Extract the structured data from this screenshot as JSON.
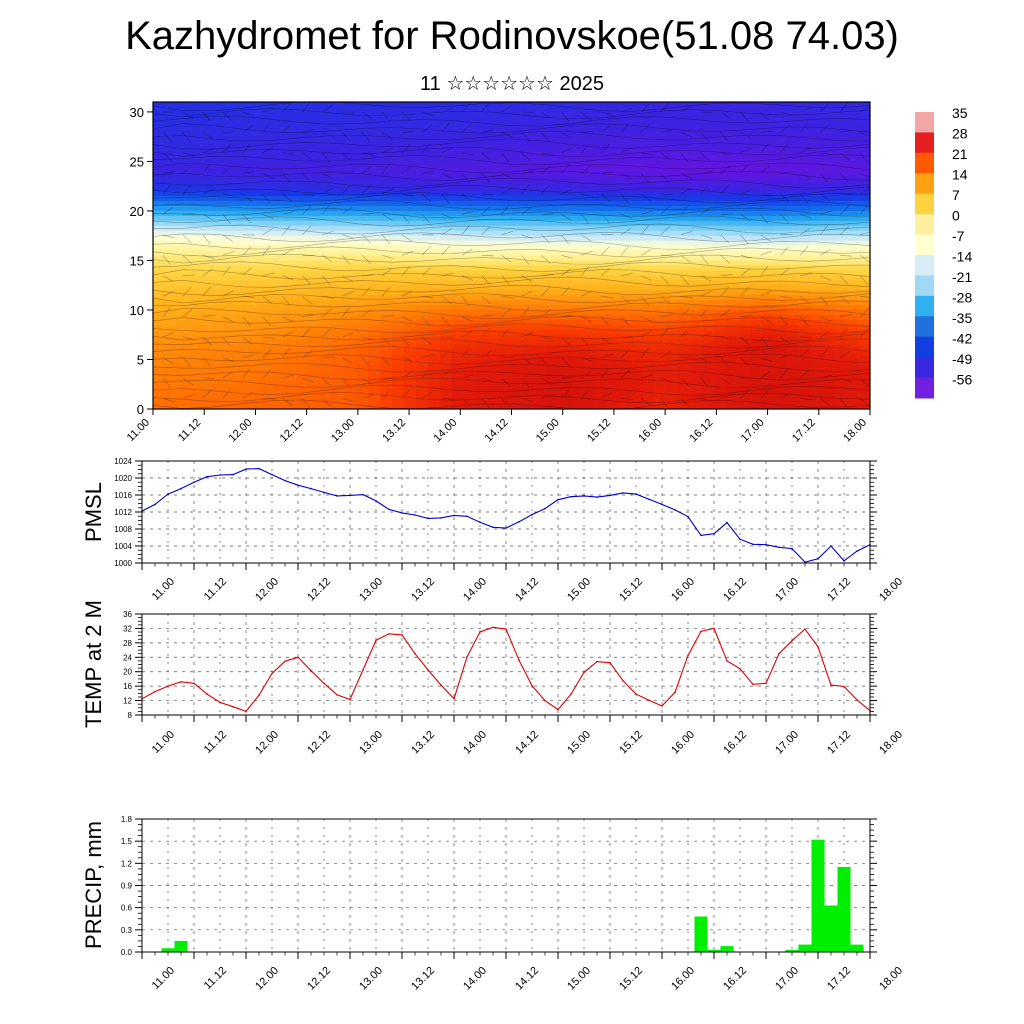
{
  "header": {
    "title": "Kazhydromet for Rodinovskoe(51.08 74.03)",
    "subtitle": "11 ☆☆☆☆☆☆ 2025"
  },
  "chart_data": [
    {
      "type": "heatmap",
      "title": "",
      "x_tick_labels": [
        "11.00",
        "11.12",
        "12.00",
        "12.12",
        "13.00",
        "13.12",
        "14.00",
        "14.12",
        "15.00",
        "15.12",
        "16.00",
        "16.12",
        "17.00",
        "17.12",
        "18.00"
      ],
      "y_ticks": [
        0,
        5,
        10,
        15,
        20,
        25,
        30
      ],
      "ylim": [
        0,
        31
      ],
      "colorbar": {
        "labels": [
          "35",
          "28",
          "21",
          "14",
          "7",
          "0",
          "-7",
          "-14",
          "-21",
          "-28",
          "-35",
          "-42",
          "-49",
          "-56"
        ],
        "colors": [
          "#f2a6a6",
          "#e62020",
          "#ff5a00",
          "#ffa010",
          "#ffd240",
          "#fff0a0",
          "#ffffd0",
          "#d8ecf8",
          "#a0d8f5",
          "#30b0f0",
          "#2070e0",
          "#1040e0",
          "#3828e0",
          "#7020e0"
        ]
      },
      "temperature_grid": {
        "x": [
          0,
          2,
          4,
          6,
          8,
          10,
          12,
          14
        ],
        "y": [
          0,
          2,
          4,
          6,
          8,
          10,
          12,
          14,
          16,
          18,
          20,
          22,
          24,
          26,
          28,
          31
        ],
        "values": [
          [
            13,
            14,
            15,
            24,
            27,
            22,
            27,
            24
          ],
          [
            12,
            13,
            15,
            24,
            27,
            23,
            27,
            25
          ],
          [
            11,
            12,
            15,
            23,
            26,
            23,
            26,
            24
          ],
          [
            10,
            11,
            14,
            21,
            23,
            21,
            26,
            21
          ],
          [
            8,
            9,
            12,
            17,
            18,
            17,
            22,
            17
          ],
          [
            6,
            7,
            9,
            12,
            12,
            12,
            15,
            12
          ],
          [
            3,
            4,
            5,
            6,
            6,
            6,
            7,
            6
          ],
          [
            0,
            0,
            1,
            1,
            1,
            0,
            1,
            0
          ],
          [
            -5,
            -6,
            -6,
            -8,
            -8,
            -8,
            -9,
            -8
          ],
          [
            -14,
            -16,
            -17,
            -19,
            -20,
            -20,
            -22,
            -20
          ],
          [
            -30,
            -32,
            -33,
            -35,
            -36,
            -37,
            -38,
            -36
          ],
          [
            -46,
            -48,
            -49,
            -50,
            -50,
            -51,
            -51,
            -50
          ],
          [
            -52,
            -53,
            -54,
            -56,
            -58,
            -60,
            -60,
            -58
          ],
          [
            -50,
            -51,
            -52,
            -53,
            -55,
            -56,
            -56,
            -55
          ],
          [
            -49,
            -50,
            -50,
            -51,
            -52,
            -53,
            -53,
            -52
          ],
          [
            -48,
            -48,
            -49,
            -49,
            -50,
            -51,
            -51,
            -50
          ]
        ]
      }
    },
    {
      "type": "line",
      "ylabel": "PMSL",
      "ylim": [
        1000,
        1024
      ],
      "y_ticks": [
        1000,
        1004,
        1008,
        1012,
        1016,
        1020,
        1024
      ],
      "x_tick_labels": [
        "11.00",
        "11.12",
        "12.00",
        "12.12",
        "13.00",
        "13.12",
        "14.00",
        "14.12",
        "15.00",
        "15.12",
        "16.00",
        "16.12",
        "17.00",
        "17.12",
        "18.00"
      ],
      "line_color": "#0000cc",
      "x": [
        0,
        3,
        6,
        9,
        12,
        15,
        18,
        21,
        24,
        27,
        30,
        33,
        36,
        39,
        42,
        45,
        48,
        51,
        54,
        57,
        60,
        63,
        66,
        69,
        72,
        75,
        78,
        81,
        84,
        87,
        90,
        93,
        96,
        99,
        102,
        105,
        108,
        111,
        114,
        117,
        120,
        123,
        126,
        129,
        132,
        135,
        138,
        141,
        144,
        147,
        150,
        153,
        156,
        159,
        162,
        165,
        168
      ],
      "values": [
        1012.2,
        1013.8,
        1016.2,
        1017.5,
        1019.0,
        1020.3,
        1020.7,
        1020.8,
        1022.1,
        1022.2,
        1020.8,
        1019.4,
        1018.3,
        1017.5,
        1016.6,
        1015.8,
        1015.9,
        1016.1,
        1014.6,
        1012.6,
        1011.8,
        1011.3,
        1010.5,
        1010.6,
        1011.2,
        1011.0,
        1009.6,
        1008.4,
        1008.2,
        1009.7,
        1011.4,
        1012.8,
        1014.9,
        1015.6,
        1015.8,
        1015.5,
        1015.9,
        1016.5,
        1016.2,
        1015.0,
        1013.8,
        1012.5,
        1010.9,
        1006.5,
        1006.9,
        1009.5,
        1005.6,
        1004.4,
        1004.3,
        1003.7,
        1003.4,
        1000.2,
        1001.0,
        1004.0,
        1000.5,
        1002.8,
        1004.3
      ]
    },
    {
      "type": "line",
      "ylabel": "TEMP at 2 M",
      "ylim": [
        8,
        36
      ],
      "y_ticks": [
        8,
        12,
        16,
        20,
        24,
        28,
        32,
        36
      ],
      "x_tick_labels": [
        "11.00",
        "11.12",
        "12.00",
        "12.12",
        "13.00",
        "13.12",
        "14.00",
        "14.12",
        "15.00",
        "15.12",
        "16.00",
        "16.12",
        "17.00",
        "17.12",
        "18.00"
      ],
      "line_color": "#dd0000",
      "x": [
        0,
        3,
        6,
        9,
        12,
        15,
        18,
        21,
        24,
        27,
        30,
        33,
        36,
        39,
        42,
        45,
        48,
        51,
        54,
        57,
        60,
        63,
        66,
        69,
        72,
        75,
        78,
        81,
        84,
        87,
        90,
        93,
        96,
        99,
        102,
        105,
        108,
        111,
        114,
        117,
        120,
        123,
        126,
        129,
        132,
        135,
        138,
        141,
        144,
        147,
        150,
        153,
        156,
        159,
        162,
        165,
        168
      ],
      "values": [
        12.5,
        14.5,
        16.0,
        17.2,
        16.8,
        13.8,
        11.5,
        10.3,
        9.0,
        13.5,
        19.5,
        22.9,
        24.0,
        20.3,
        16.8,
        13.6,
        12.3,
        20.5,
        28.7,
        30.5,
        30.2,
        25.0,
        20.5,
        16.3,
        12.5,
        24.1,
        31.0,
        32.3,
        31.8,
        23.2,
        16.1,
        12.0,
        9.5,
        13.8,
        19.8,
        22.8,
        22.5,
        17.5,
        13.8,
        12.1,
        10.5,
        14.3,
        24.5,
        31.2,
        32.0,
        23.0,
        20.8,
        16.5,
        16.8,
        25.0,
        28.6,
        31.8,
        26.9,
        16.3,
        15.9,
        12.2,
        9.2
      ]
    },
    {
      "type": "bar",
      "ylabel": "PRECIP, mm",
      "ylim": [
        0,
        1.8
      ],
      "y_ticks": [
        "0.0",
        "0.3",
        "0.6",
        "0.9",
        "1.2",
        "1.5",
        "1.8"
      ],
      "x_tick_labels": [
        "11.00",
        "11.12",
        "12.00",
        "12.12",
        "13.00",
        "13.12",
        "14.00",
        "14.12",
        "15.00",
        "15.12",
        "16.00",
        "16.12",
        "17.00",
        "17.12",
        "18.00"
      ],
      "bar_color": "#00ee00",
      "x": [
        6,
        9,
        129,
        132,
        135,
        150,
        153,
        156,
        159,
        162,
        165
      ],
      "values": [
        0.05,
        0.15,
        0.48,
        0.03,
        0.08,
        0.03,
        0.1,
        1.52,
        0.63,
        1.15,
        0.1
      ]
    }
  ]
}
